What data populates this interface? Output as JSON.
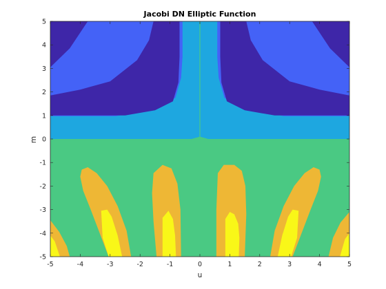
{
  "chart_data": {
    "type": "heatmap",
    "subtype": "filled-contour",
    "title": "Jacobi DN Elliptic Function",
    "xlabel": "u",
    "ylabel": "m",
    "xlim": [
      -5,
      5
    ],
    "ylim": [
      -5,
      5
    ],
    "x_ticks": [
      -5,
      -4,
      -3,
      -2,
      -1,
      0,
      1,
      2,
      3,
      4,
      5
    ],
    "y_ticks": [
      -5,
      -4,
      -3,
      -2,
      -1,
      0,
      1,
      2,
      3,
      4,
      5
    ],
    "grid": false,
    "colors": {
      "level_1": "#3e26a8",
      "level_2": "#4462f7",
      "level_3": "#1ea7e0",
      "level_4": "#4ac983",
      "level_5": "#eeb735",
      "level_6": "#f9f718"
    },
    "regions": {
      "upper_background": {
        "level": "level_3",
        "polygon": [
          [
            -5,
            0
          ],
          [
            5,
            0
          ],
          [
            5,
            5
          ],
          [
            -5,
            5
          ]
        ]
      },
      "upper_blue_bands": [
        {
          "level": "level_2",
          "polygon": [
            [
              -5,
              1.75
            ],
            [
              -4,
              2.05
            ],
            [
              -3,
              2.55
            ],
            [
              -2.2,
              3.35
            ],
            [
              -1.8,
              4.2
            ],
            [
              -1.68,
              5
            ],
            [
              -3.4,
              5
            ],
            [
              -5,
              3.35
            ]
          ]
        },
        {
          "level": "level_2",
          "polygon": [
            [
              -5,
              0.97
            ],
            [
              -2.8,
              0.97
            ],
            [
              -1.4,
              1.35
            ],
            [
              -0.82,
              1.75
            ],
            [
              -0.63,
              2.6
            ],
            [
              -0.58,
              3.5
            ],
            [
              -0.58,
              5
            ],
            [
              -5,
              5
            ]
          ]
        },
        {
          "level": "level_2",
          "polygon": [
            [
              5,
              1.75
            ],
            [
              4,
              2.05
            ],
            [
              3,
              2.55
            ],
            [
              2.2,
              3.35
            ],
            [
              1.8,
              4.2
            ],
            [
              1.68,
              5
            ],
            [
              3.4,
              5
            ],
            [
              5,
              3.35
            ]
          ]
        },
        {
          "level": "level_2",
          "polygon": [
            [
              5,
              0.97
            ],
            [
              2.8,
              0.97
            ],
            [
              1.4,
              1.35
            ],
            [
              0.82,
              1.75
            ],
            [
              0.63,
              2.6
            ],
            [
              0.58,
              3.5
            ],
            [
              0.58,
              5
            ],
            [
              5,
              5
            ]
          ]
        }
      ],
      "upper_dark_regions": [
        {
          "level": "level_1",
          "polygon": [
            [
              -5,
              1.0
            ],
            [
              -2.5,
              1.0
            ],
            [
              -1.5,
              1.22
            ],
            [
              -0.9,
              1.6
            ],
            [
              -0.72,
              2.4
            ],
            [
              -0.68,
              3.5
            ],
            [
              -0.68,
              5
            ],
            [
              -1.55,
              5
            ],
            [
              -1.7,
              4.2
            ],
            [
              -2.1,
              3.35
            ],
            [
              -3,
              2.45
            ],
            [
              -4,
              2.1
            ],
            [
              -5,
              1.85
            ]
          ]
        },
        {
          "level": "level_1",
          "polygon": [
            [
              -5,
              3.05
            ],
            [
              -4.35,
              3.85
            ],
            [
              -3.75,
              5
            ],
            [
              -5,
              5
            ]
          ]
        },
        {
          "level": "level_1",
          "polygon": [
            [
              5,
              1.0
            ],
            [
              2.5,
              1.0
            ],
            [
              1.5,
              1.22
            ],
            [
              0.9,
              1.6
            ],
            [
              0.72,
              2.4
            ],
            [
              0.68,
              3.5
            ],
            [
              0.68,
              5
            ],
            [
              1.55,
              5
            ],
            [
              1.7,
              4.2
            ],
            [
              2.1,
              3.35
            ],
            [
              3,
              2.45
            ],
            [
              4,
              2.1
            ],
            [
              5,
              1.85
            ]
          ]
        },
        {
          "level": "level_1",
          "polygon": [
            [
              5,
              3.05
            ],
            [
              4.35,
              3.85
            ],
            [
              3.75,
              5
            ],
            [
              5,
              5
            ]
          ]
        }
      ],
      "lower_background": {
        "level": "level_4",
        "polygon": [
          [
            -5,
            -5
          ],
          [
            5,
            -5
          ],
          [
            5,
            0
          ],
          [
            -5,
            0
          ]
        ]
      },
      "lower_orange_lobes": [
        {
          "level": "level_5",
          "polygon": [
            [
              -5,
              -3.45
            ],
            [
              -4.7,
              -3.95
            ],
            [
              -4.45,
              -4.55
            ],
            [
              -4.35,
              -5
            ],
            [
              -5,
              -5
            ]
          ]
        },
        {
          "level": "level_5",
          "polygon": [
            [
              -3.95,
              -1.3
            ],
            [
              -3.75,
              -1.2
            ],
            [
              -3.45,
              -1.45
            ],
            [
              -3.1,
              -2.0
            ],
            [
              -2.75,
              -2.85
            ],
            [
              -2.45,
              -3.9
            ],
            [
              -2.3,
              -5
            ],
            [
              -3.05,
              -5
            ],
            [
              -3.35,
              -4.0
            ],
            [
              -3.65,
              -3.0
            ],
            [
              -3.9,
              -2.2
            ],
            [
              -4.0,
              -1.6
            ]
          ]
        },
        {
          "level": "level_5",
          "polygon": [
            [
              -1.55,
              -1.45
            ],
            [
              -1.25,
              -1.1
            ],
            [
              -0.95,
              -1.25
            ],
            [
              -0.75,
              -1.9
            ],
            [
              -0.65,
              -3.0
            ],
            [
              -0.63,
              -5
            ],
            [
              -1.45,
              -5
            ],
            [
              -1.55,
              -3.5
            ],
            [
              -1.6,
              -2.3
            ]
          ]
        },
        {
          "level": "level_5",
          "polygon": [
            [
              0.6,
              -1.45
            ],
            [
              0.8,
              -1.1
            ],
            [
              1.15,
              -1.1
            ],
            [
              1.4,
              -1.35
            ],
            [
              1.52,
              -2.0
            ],
            [
              1.55,
              -3.2
            ],
            [
              1.5,
              -5
            ],
            [
              0.55,
              -5
            ],
            [
              0.55,
              -3.0
            ]
          ]
        },
        {
          "level": "level_5",
          "polygon": [
            [
              4.0,
              -1.3
            ],
            [
              3.8,
              -1.2
            ],
            [
              3.5,
              -1.45
            ],
            [
              3.15,
              -2.0
            ],
            [
              2.8,
              -2.85
            ],
            [
              2.5,
              -3.9
            ],
            [
              2.35,
              -5
            ],
            [
              3.1,
              -5
            ],
            [
              3.4,
              -4.0
            ],
            [
              3.7,
              -3.0
            ],
            [
              3.95,
              -2.2
            ],
            [
              4.05,
              -1.6
            ]
          ]
        },
        {
          "level": "level_5",
          "polygon": [
            [
              5,
              -3.1
            ],
            [
              4.7,
              -3.55
            ],
            [
              4.45,
              -4.2
            ],
            [
              4.3,
              -5
            ],
            [
              5,
              -5
            ]
          ]
        }
      ],
      "lower_yellow_cores": [
        {
          "level": "level_6",
          "polygon": [
            [
              -5,
              -4.1
            ],
            [
              -4.85,
              -4.35
            ],
            [
              -4.68,
              -5
            ],
            [
              -5,
              -5
            ]
          ]
        },
        {
          "level": "level_6",
          "polygon": [
            [
              -3.3,
              -3.05
            ],
            [
              -3.1,
              -3.0
            ],
            [
              -2.95,
              -3.3
            ],
            [
              -2.75,
              -4.1
            ],
            [
              -2.6,
              -5
            ],
            [
              -3.05,
              -5
            ],
            [
              -3.25,
              -4.2
            ]
          ]
        },
        {
          "level": "level_6",
          "polygon": [
            [
              -1.25,
              -3.35
            ],
            [
              -1.05,
              -3.05
            ],
            [
              -0.9,
              -3.4
            ],
            [
              -0.83,
              -4.1
            ],
            [
              -0.8,
              -5
            ],
            [
              -1.25,
              -5
            ]
          ]
        },
        {
          "level": "level_6",
          "polygon": [
            [
              0.85,
              -3.4
            ],
            [
              1.0,
              -3.1
            ],
            [
              1.15,
              -3.2
            ],
            [
              1.28,
              -3.6
            ],
            [
              1.32,
              -4.2
            ],
            [
              1.3,
              -5
            ],
            [
              0.85,
              -5
            ]
          ]
        },
        {
          "level": "level_6",
          "polygon": [
            [
              3.3,
              -3.05
            ],
            [
              3.1,
              -3.0
            ],
            [
              2.95,
              -3.3
            ],
            [
              2.75,
              -4.1
            ],
            [
              2.6,
              -5
            ],
            [
              3.05,
              -5
            ],
            [
              3.25,
              -4.2
            ]
          ]
        },
        {
          "level": "level_6",
          "polygon": [
            [
              5,
              -4.0
            ],
            [
              4.85,
              -4.25
            ],
            [
              4.68,
              -5
            ],
            [
              5,
              -5
            ]
          ]
        }
      ],
      "center_line": {
        "level": "level_4",
        "x": 0,
        "y_from": 0.05,
        "y_to": 5
      },
      "center_bump": {
        "level": "level_4",
        "polygon": [
          [
            -0.28,
            0
          ],
          [
            0,
            0.1
          ],
          [
            0.28,
            0
          ]
        ]
      }
    }
  }
}
